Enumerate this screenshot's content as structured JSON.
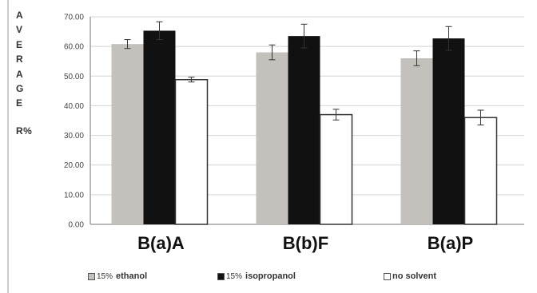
{
  "chart_data": {
    "type": "bar",
    "title": "",
    "ylabel_letters": [
      "A",
      "V",
      "E",
      "R",
      "A",
      "G",
      "E",
      "R%"
    ],
    "ylim": [
      0,
      70
    ],
    "yticks": [
      "0.00",
      "10.00",
      "20.00",
      "30.00",
      "40.00",
      "50.00",
      "60.00",
      "70.00"
    ],
    "categories": [
      "B(a)A",
      "B(b)F",
      "B(a)P"
    ],
    "series": [
      {
        "legend_prefix": "15%",
        "legend_label": "ethanol",
        "color": "#c4c1bd",
        "values": [
          60.8,
          58.0,
          56.0
        ],
        "errors": [
          1.5,
          2.5,
          2.5
        ]
      },
      {
        "legend_prefix": "15%",
        "legend_label": "isopropanol",
        "color": "#111111",
        "values": [
          65.3,
          63.5,
          62.7
        ],
        "errors": [
          3.0,
          4.0,
          4.0
        ]
      },
      {
        "legend_prefix": "",
        "legend_label": "no solvent",
        "color": "#ffffff",
        "values": [
          48.8,
          37.0,
          36.0
        ],
        "errors": [
          0.8,
          1.8,
          2.5
        ]
      }
    ],
    "grid": true,
    "legend_position": "bottom"
  }
}
